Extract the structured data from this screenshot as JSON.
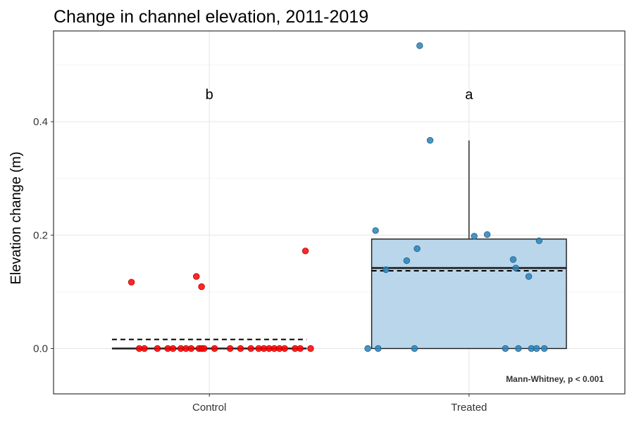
{
  "chart_data": {
    "type": "box",
    "title": "Change in channel elevation, 2011-2019",
    "xlabel": "",
    "ylabel": "Elevation change (m)",
    "categories": [
      "Control",
      "Treated"
    ],
    "ylim": [
      -0.08,
      0.56
    ],
    "yticks": [
      "0.0",
      "0.2",
      "0.4"
    ],
    "grid": true,
    "legend": "none",
    "significance_letters": [
      "b",
      "a"
    ],
    "annotation": "Mann-Whitney, p < 0.001",
    "groups": [
      {
        "name": "Control",
        "color": "#ff0000",
        "box": {
          "min": 0,
          "q1": 0,
          "median": 0,
          "q3": 0,
          "max": 0
        },
        "mean": 0.016,
        "points": [
          {
            "x": 0.7,
            "y": 0.117
          },
          {
            "x": 0.73,
            "y": 0
          },
          {
            "x": 0.75,
            "y": 0
          },
          {
            "x": 0.8,
            "y": 0
          },
          {
            "x": 0.84,
            "y": 0
          },
          {
            "x": 0.86,
            "y": 0
          },
          {
            "x": 0.89,
            "y": 0
          },
          {
            "x": 0.91,
            "y": 0
          },
          {
            "x": 0.93,
            "y": 0
          },
          {
            "x": 0.95,
            "y": 0.127
          },
          {
            "x": 0.96,
            "y": 0
          },
          {
            "x": 0.97,
            "y": 0
          },
          {
            "x": 0.98,
            "y": 0
          },
          {
            "x": 0.97,
            "y": 0.109
          },
          {
            "x": 1.02,
            "y": 0
          },
          {
            "x": 1.08,
            "y": 0
          },
          {
            "x": 1.12,
            "y": 0
          },
          {
            "x": 1.16,
            "y": 0
          },
          {
            "x": 1.19,
            "y": 0
          },
          {
            "x": 1.21,
            "y": 0
          },
          {
            "x": 1.23,
            "y": 0
          },
          {
            "x": 1.25,
            "y": 0
          },
          {
            "x": 1.27,
            "y": 0
          },
          {
            "x": 1.29,
            "y": 0
          },
          {
            "x": 1.33,
            "y": 0
          },
          {
            "x": 1.35,
            "y": 0
          },
          {
            "x": 1.37,
            "y": 0.172
          },
          {
            "x": 1.39,
            "y": 0
          }
        ]
      },
      {
        "name": "Treated",
        "color": "#2b83ba",
        "box": {
          "min": 0,
          "q1": 0,
          "median": 0.142,
          "q3": 0.193,
          "max": 0.367
        },
        "mean": 0.137,
        "points": [
          {
            "x": 1.61,
            "y": 0
          },
          {
            "x": 1.64,
            "y": 0.208
          },
          {
            "x": 1.65,
            "y": 0
          },
          {
            "x": 1.68,
            "y": 0.139
          },
          {
            "x": 1.76,
            "y": 0.155
          },
          {
            "x": 1.79,
            "y": 0
          },
          {
            "x": 1.8,
            "y": 0.176
          },
          {
            "x": 1.81,
            "y": 0.534
          },
          {
            "x": 1.85,
            "y": 0.367
          },
          {
            "x": 2.02,
            "y": 0.198
          },
          {
            "x": 2.07,
            "y": 0.201
          },
          {
            "x": 2.14,
            "y": 0
          },
          {
            "x": 2.17,
            "y": 0.157
          },
          {
            "x": 2.18,
            "y": 0.142
          },
          {
            "x": 2.19,
            "y": 0
          },
          {
            "x": 2.23,
            "y": 0.127
          },
          {
            "x": 2.24,
            "y": 0
          },
          {
            "x": 2.26,
            "y": 0
          },
          {
            "x": 2.27,
            "y": 0.19
          },
          {
            "x": 2.29,
            "y": 0
          }
        ]
      }
    ]
  }
}
